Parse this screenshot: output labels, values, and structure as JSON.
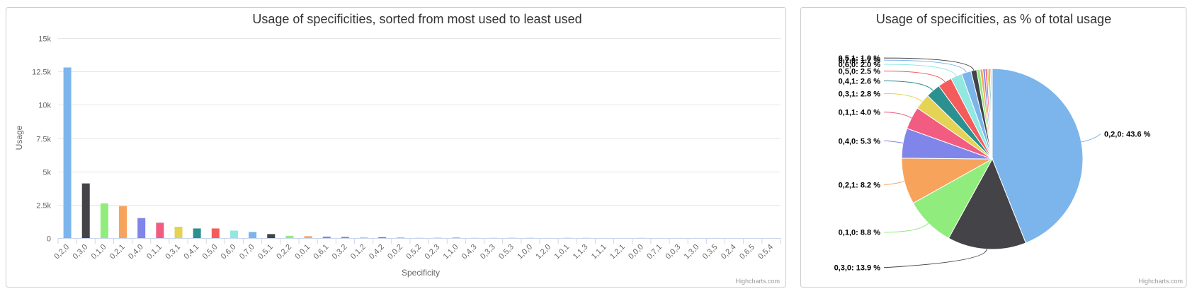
{
  "chart_data": [
    {
      "type": "bar",
      "title": "Usage of specificities, sorted from most used to least used",
      "xlabel": "Specificity",
      "ylabel": "Usage",
      "ylim": [
        0,
        15000
      ],
      "y_ticks": [
        "0",
        "2.5k",
        "5k",
        "7.5k",
        "10k",
        "12.5k",
        "15k"
      ],
      "y_tick_values": [
        0,
        2500,
        5000,
        7500,
        10000,
        12500,
        15000
      ],
      "grid": true,
      "legend": "none",
      "credits": "Highcharts.com",
      "categories": [
        "0,2,0",
        "0,3,0",
        "0,1,0",
        "0,2,1",
        "0,4,0",
        "0,1,1",
        "0,3,1",
        "0,4,1",
        "0,5,0",
        "0,6,0",
        "0,7,0",
        "0,5,1",
        "0,2,2",
        "0,0,1",
        "0,6,1",
        "0,3,2",
        "0,1,2",
        "0,4,2",
        "0,0,2",
        "0,5,2",
        "0,2,3",
        "1,1,0",
        "0,4,3",
        "0,3,3",
        "0,5,3",
        "1,0,0",
        "1,2,0",
        "1,0,1",
        "1,1,3",
        "1,1,1",
        "1,2,1",
        "0,0,0",
        "0,7,1",
        "0,0,3",
        "1,3,0",
        "0,3,5",
        "0,2,4",
        "0,6,5",
        "0,5,4"
      ],
      "values": [
        12800,
        4100,
        2600,
        2400,
        1500,
        1150,
        850,
        720,
        720,
        560,
        460,
        300,
        170,
        140,
        110,
        90,
        70,
        60,
        30,
        25,
        22,
        20,
        18,
        15,
        13,
        11,
        10,
        9,
        8,
        7,
        6,
        5,
        5,
        4,
        4,
        3,
        3,
        2,
        2
      ],
      "colors": [
        "#7cb5ec",
        "#434348",
        "#90ed7d",
        "#f7a35c",
        "#8085e9",
        "#f15c80",
        "#e4d354",
        "#2b908f",
        "#f45b5b",
        "#91e8e1"
      ]
    },
    {
      "type": "pie",
      "title": "Usage of specificities, as % of total usage",
      "credits": "Highcharts.com",
      "label_suffix": " %",
      "slices": [
        {
          "name": "0,2,0",
          "value": 43.6,
          "color": "#7cb5ec",
          "labeled": true
        },
        {
          "name": "0,3,0",
          "value": 13.9,
          "color": "#434348",
          "labeled": true
        },
        {
          "name": "0,1,0",
          "value": 8.8,
          "color": "#90ed7d",
          "labeled": true
        },
        {
          "name": "0,2,1",
          "value": 8.2,
          "color": "#f7a35c",
          "labeled": true
        },
        {
          "name": "0,4,0",
          "value": 5.3,
          "color": "#8085e9",
          "labeled": true
        },
        {
          "name": "0,1,1",
          "value": 4.0,
          "color": "#f15c80",
          "labeled": true
        },
        {
          "name": "0,3,1",
          "value": 2.8,
          "color": "#e4d354",
          "labeled": true
        },
        {
          "name": "0,4,1",
          "value": 2.6,
          "color": "#2b908f",
          "labeled": true
        },
        {
          "name": "0,5,0",
          "value": 2.5,
          "color": "#f45b5b",
          "labeled": true
        },
        {
          "name": "0,6,0",
          "value": 2.0,
          "color": "#91e8e1",
          "labeled": true
        },
        {
          "name": "0,7,0",
          "value": 1.7,
          "color": "#7cb5ec",
          "labeled": true
        },
        {
          "name": "0,5,1",
          "value": 1.0,
          "color": "#434348",
          "labeled": true
        },
        {
          "name": "0,2,2",
          "value": 0.6,
          "color": "#90ed7d",
          "labeled": false
        },
        {
          "name": "0,0,1",
          "value": 0.5,
          "color": "#f7a35c",
          "labeled": false
        },
        {
          "name": "0,6,1",
          "value": 0.4,
          "color": "#8085e9",
          "labeled": false
        },
        {
          "name": "0,3,2",
          "value": 0.35,
          "color": "#f15c80",
          "labeled": false
        },
        {
          "name": "0,1,2",
          "value": 0.3,
          "color": "#e4d354",
          "labeled": false
        },
        {
          "name": "0,4,2",
          "value": 0.25,
          "color": "#2b908f",
          "labeled": false
        },
        {
          "name": "0,0,2",
          "value": 0.2,
          "color": "#f45b5b",
          "labeled": false
        },
        {
          "name": "0,5,2",
          "value": 0.15,
          "color": "#91e8e1",
          "labeled": false
        }
      ]
    }
  ]
}
